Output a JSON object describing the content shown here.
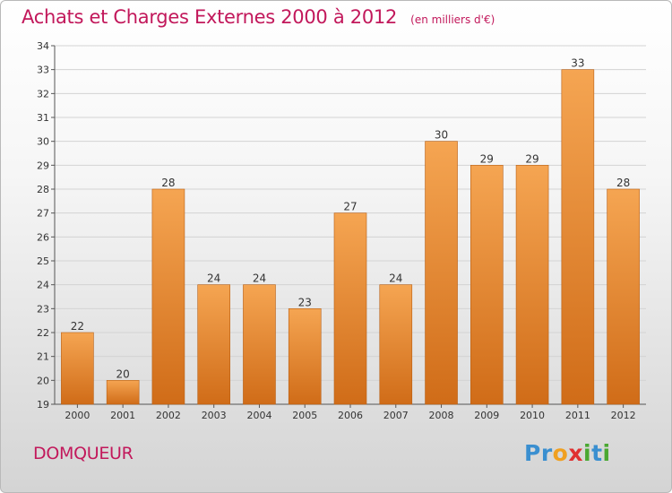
{
  "header": {
    "title": "Achats et Charges Externes 2000 à 2012",
    "unit": "(en milliers d'€)"
  },
  "footer": {
    "commune": "DOMQUEUR",
    "logo_letters": [
      "P",
      "r",
      "o",
      "x",
      "i",
      "t",
      "i"
    ],
    "logo_colors": [
      "#3a8fd0",
      "#3a8fd0",
      "#f0a020",
      "#e03030",
      "#4aa832",
      "#3a8fd0",
      "#4aa832"
    ]
  },
  "colors": {
    "title": "#c2185b",
    "bar_light": "#f5a552",
    "bar_dark": "#d06c18",
    "bar_edge": "#b85f14"
  },
  "chart_data": {
    "type": "bar",
    "title": "Achats et Charges Externes 2000 à 2012",
    "subtitle": "(en milliers d'€)",
    "xlabel": "",
    "ylabel": "",
    "categories": [
      "2000",
      "2001",
      "2002",
      "2003",
      "2004",
      "2005",
      "2006",
      "2007",
      "2008",
      "2009",
      "2010",
      "2011",
      "2012"
    ],
    "values": [
      22,
      20,
      28,
      24,
      24,
      23,
      27,
      24,
      30,
      29,
      29,
      33,
      28
    ],
    "ylim": [
      19,
      34
    ],
    "yticks": [
      19,
      20,
      21,
      22,
      23,
      24,
      25,
      26,
      27,
      28,
      29,
      30,
      31,
      32,
      33,
      34
    ],
    "grid": true,
    "legend": "none"
  }
}
